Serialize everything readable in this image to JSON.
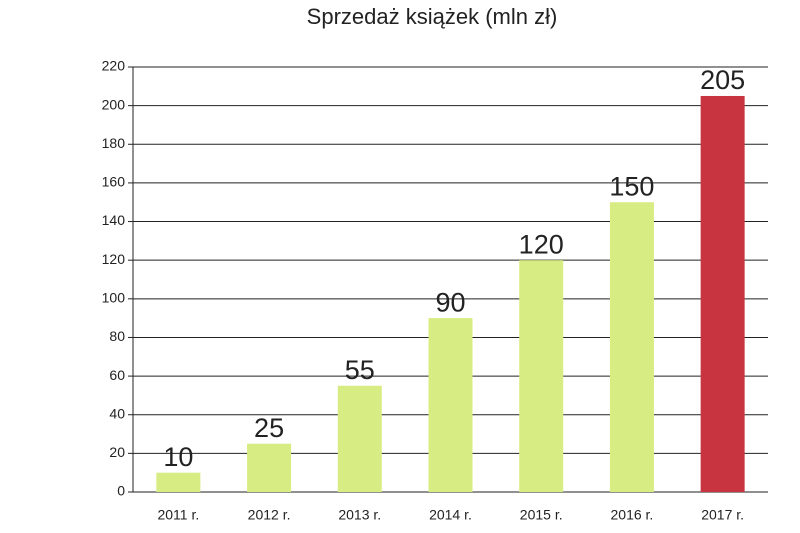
{
  "chart_data": {
    "type": "bar",
    "title": "Sprzedaż książek (mln zł)",
    "categories": [
      "2011 r.",
      "2012 r.",
      "2013 r.",
      "2014 r.",
      "2015 r.",
      "2016 r.",
      "2017 r."
    ],
    "values": [
      10,
      25,
      55,
      90,
      120,
      150,
      205
    ],
    "colors": [
      "#d7ec82",
      "#d7ec82",
      "#d7ec82",
      "#d7ec82",
      "#d7ec82",
      "#d7ec82",
      "#c8343f"
    ],
    "ylim": [
      0,
      220
    ],
    "yticks": [
      0,
      20,
      40,
      60,
      80,
      100,
      120,
      140,
      160,
      180,
      200,
      220
    ],
    "grid": true
  }
}
